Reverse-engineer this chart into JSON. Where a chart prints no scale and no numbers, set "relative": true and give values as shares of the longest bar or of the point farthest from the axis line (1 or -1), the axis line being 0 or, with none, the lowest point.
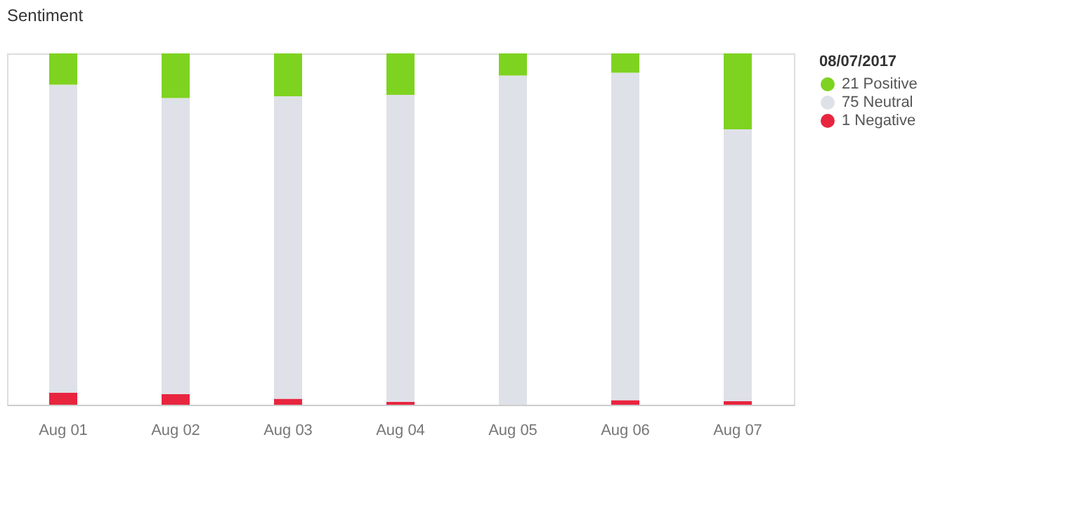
{
  "chart_data": {
    "type": "bar",
    "title": "Sentiment",
    "stacked": true,
    "relative": true,
    "legend": "right",
    "legend_title": "08/07/2017",
    "categories": [
      "Aug 01",
      "Aug 02",
      "Aug 03",
      "Aug 04",
      "Aug 05",
      "Aug 06",
      "Aug 07"
    ],
    "series": [
      {
        "name": "1 Negative",
        "color": "#e8253f",
        "values": [
          0.034,
          0.03,
          0.017,
          0.008,
          0.0,
          0.013,
          0.01
        ]
      },
      {
        "name": "75 Neutral",
        "color": "#dfe1e8",
        "values": [
          0.877,
          0.843,
          0.861,
          0.874,
          0.937,
          0.932,
          0.774
        ]
      },
      {
        "name": "21 Positive",
        "color": "#7ed321",
        "values": [
          0.089,
          0.127,
          0.122,
          0.118,
          0.063,
          0.055,
          0.216
        ]
      }
    ]
  }
}
